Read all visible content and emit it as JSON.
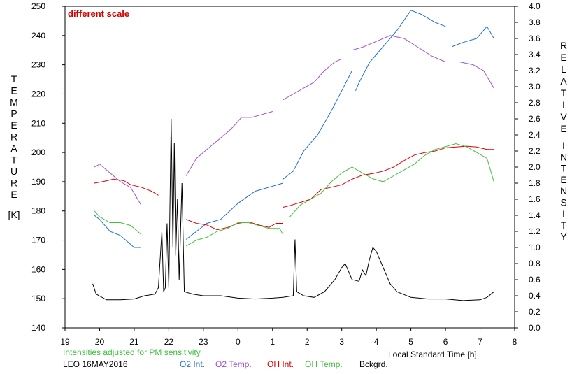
{
  "chart_data": {
    "type": "line",
    "annotation": "different scale",
    "y_left": {
      "label_letters": [
        "T",
        "E",
        "M",
        "P",
        "E",
        "R",
        "A",
        "T",
        "U",
        "R",
        "E"
      ],
      "unit": "[K]",
      "ticks": [
        140,
        150,
        160,
        170,
        180,
        190,
        200,
        210,
        220,
        230,
        240,
        250
      ],
      "range": [
        140,
        250
      ]
    },
    "y_right": {
      "label_word1": [
        "R",
        "E",
        "L",
        "A",
        "T",
        "I",
        "V",
        "E"
      ],
      "label_word2": [
        "I",
        "N",
        "T",
        "E",
        "N",
        "S",
        "I",
        "T",
        "Y"
      ],
      "ticks": [
        "0.0",
        "0.2",
        "0.4",
        "0.6",
        "0.8",
        "1.0",
        "1.2",
        "1.4",
        "1.6",
        "1.8",
        "2.0",
        "2.2",
        "2.4",
        "2.6",
        "2.8",
        "3.0",
        "3.2",
        "3.4",
        "3.6",
        "3.8",
        "4.0"
      ],
      "range": [
        0,
        4.0
      ]
    },
    "x": {
      "label": "Local Standard Time [h]",
      "ticks": [
        "19",
        "20",
        "21",
        "22",
        "23",
        "0",
        "1",
        "2",
        "3",
        "4",
        "5",
        "6",
        "7",
        "8"
      ],
      "range": [
        19,
        32
      ]
    },
    "footer": {
      "note": "Intensities adjusted for PM sensitivity",
      "station": "LEO 16MAY2016"
    },
    "legend": [
      {
        "name": "O2 Int.",
        "color": "#1f6fd6"
      },
      {
        "name": "O2 Temp.",
        "color": "#a050d0"
      },
      {
        "name": "OH Int.",
        "color": "#e00000"
      },
      {
        "name": "OH Temp.",
        "color": "#40c040"
      },
      {
        "name": "Bckgrd.",
        "color": "#000000"
      }
    ],
    "series": [
      {
        "name": "O2 Int.",
        "axis": "right",
        "color": "#1f6fd6",
        "points": [
          [
            19.85,
            1.4
          ],
          [
            20.0,
            1.35
          ],
          [
            20.3,
            1.2
          ],
          [
            20.6,
            1.15
          ],
          [
            21.0,
            1.0
          ],
          [
            21.2,
            1.0
          ],
          null,
          [
            22.5,
            1.1
          ],
          [
            22.8,
            1.2
          ],
          [
            23.1,
            1.3
          ],
          [
            23.5,
            1.35
          ],
          [
            24.0,
            1.55
          ],
          [
            24.5,
            1.7
          ],
          [
            24.9,
            1.75
          ],
          [
            25.3,
            1.8
          ],
          null,
          [
            25.3,
            1.85
          ],
          [
            25.6,
            1.95
          ],
          [
            25.9,
            2.2
          ],
          [
            26.3,
            2.4
          ],
          [
            26.7,
            2.7
          ],
          [
            27.0,
            2.95
          ],
          [
            27.3,
            3.2
          ],
          null,
          [
            27.4,
            2.95
          ],
          [
            27.5,
            3.05
          ],
          [
            27.8,
            3.3
          ],
          [
            28.2,
            3.5
          ],
          [
            28.6,
            3.7
          ],
          [
            29.0,
            3.95
          ],
          [
            29.3,
            3.9
          ],
          [
            29.7,
            3.8
          ],
          [
            30.0,
            3.75
          ],
          null,
          [
            30.2,
            3.5
          ],
          [
            30.5,
            3.55
          ],
          [
            30.9,
            3.6
          ],
          [
            31.2,
            3.75
          ],
          [
            31.4,
            3.6
          ]
        ]
      },
      {
        "name": "O2 Temp.",
        "axis": "left",
        "color": "#a050d0",
        "points": [
          [
            19.85,
            195
          ],
          [
            20.0,
            196
          ],
          [
            20.3,
            193
          ],
          [
            20.6,
            190
          ],
          [
            20.9,
            188
          ],
          [
            21.2,
            182
          ],
          null,
          [
            22.5,
            192
          ],
          [
            22.8,
            198
          ],
          [
            23.1,
            201
          ],
          [
            23.5,
            205
          ],
          [
            23.8,
            208
          ],
          [
            24.1,
            212
          ],
          [
            24.4,
            212
          ],
          [
            24.7,
            213
          ],
          [
            25.0,
            214
          ],
          null,
          [
            25.3,
            218
          ],
          [
            25.6,
            220
          ],
          [
            25.9,
            222
          ],
          [
            26.2,
            224
          ],
          [
            26.5,
            228
          ],
          [
            26.8,
            231
          ],
          [
            27.0,
            232
          ],
          null,
          [
            27.3,
            235
          ],
          [
            27.6,
            236
          ],
          [
            28.0,
            238
          ],
          [
            28.4,
            240
          ],
          [
            28.8,
            239
          ],
          [
            29.2,
            236
          ],
          [
            29.6,
            233
          ],
          [
            30.0,
            231
          ],
          [
            30.4,
            231
          ],
          [
            30.8,
            230
          ],
          [
            31.1,
            228
          ],
          [
            31.4,
            222
          ]
        ]
      },
      {
        "name": "OH Int.",
        "axis": "right",
        "color": "#e00000",
        "points": [
          [
            19.85,
            1.8
          ],
          [
            20.1,
            1.82
          ],
          [
            20.4,
            1.85
          ],
          [
            20.7,
            1.83
          ],
          [
            20.9,
            1.78
          ],
          [
            21.2,
            1.75
          ],
          [
            21.5,
            1.7
          ],
          [
            21.7,
            1.65
          ],
          null,
          [
            22.5,
            1.35
          ],
          [
            22.8,
            1.3
          ],
          [
            23.1,
            1.28
          ],
          [
            23.4,
            1.22
          ],
          [
            23.7,
            1.25
          ],
          [
            24.0,
            1.3
          ],
          [
            24.3,
            1.32
          ],
          [
            24.6,
            1.28
          ],
          [
            24.9,
            1.25
          ],
          [
            25.1,
            1.3
          ],
          [
            25.3,
            1.3
          ],
          null,
          [
            25.3,
            1.5
          ],
          [
            25.5,
            1.52
          ],
          [
            25.8,
            1.56
          ],
          [
            26.1,
            1.6
          ],
          [
            26.4,
            1.72
          ],
          [
            26.7,
            1.75
          ],
          [
            27.0,
            1.78
          ],
          [
            27.3,
            1.85
          ],
          [
            27.6,
            1.9
          ],
          [
            27.9,
            1.92
          ],
          [
            28.2,
            1.95
          ],
          [
            28.5,
            2.0
          ],
          [
            28.8,
            2.08
          ],
          [
            29.1,
            2.15
          ],
          [
            29.4,
            2.18
          ],
          [
            29.7,
            2.2
          ],
          [
            30.0,
            2.24
          ],
          [
            30.3,
            2.25
          ],
          [
            30.6,
            2.26
          ],
          [
            30.9,
            2.25
          ],
          [
            31.2,
            2.22
          ],
          [
            31.4,
            2.22
          ]
        ]
      },
      {
        "name": "OH Temp.",
        "axis": "left",
        "color": "#40c040",
        "points": [
          [
            19.85,
            180
          ],
          [
            20.0,
            178
          ],
          [
            20.3,
            176
          ],
          [
            20.6,
            176
          ],
          [
            20.9,
            175
          ],
          [
            21.2,
            172
          ],
          null,
          [
            22.5,
            168
          ],
          [
            22.8,
            170
          ],
          [
            23.1,
            171
          ],
          [
            23.4,
            173
          ],
          [
            23.7,
            174
          ],
          [
            24.0,
            176
          ],
          [
            24.3,
            176
          ],
          [
            24.6,
            175
          ],
          [
            24.9,
            174
          ],
          [
            25.2,
            174
          ],
          [
            25.3,
            172
          ],
          null,
          [
            25.5,
            178
          ],
          [
            25.8,
            182
          ],
          [
            26.1,
            184
          ],
          [
            26.4,
            186
          ],
          [
            26.7,
            190
          ],
          [
            27.0,
            193
          ],
          [
            27.3,
            195
          ],
          [
            27.6,
            193
          ],
          [
            27.9,
            191
          ],
          [
            28.2,
            190
          ],
          [
            28.5,
            192
          ],
          [
            28.8,
            194
          ],
          [
            29.1,
            196
          ],
          [
            29.4,
            199
          ],
          [
            29.7,
            201
          ],
          [
            30.0,
            202
          ],
          [
            30.3,
            203
          ],
          [
            30.6,
            202
          ],
          [
            30.9,
            200
          ],
          [
            31.2,
            198
          ],
          [
            31.4,
            190
          ]
        ]
      },
      {
        "name": "Bckgrd.",
        "axis": "right",
        "color": "#000000",
        "points": [
          [
            19.8,
            0.55
          ],
          [
            19.9,
            0.42
          ],
          [
            20.2,
            0.35
          ],
          [
            20.6,
            0.35
          ],
          [
            21.0,
            0.36
          ],
          [
            21.3,
            0.4
          ],
          [
            21.6,
            0.42
          ],
          [
            21.7,
            0.5
          ],
          [
            21.8,
            1.2
          ],
          [
            21.85,
            0.45
          ],
          [
            21.9,
            0.5
          ],
          [
            21.95,
            1.3
          ],
          [
            22.0,
            0.5
          ],
          [
            22.07,
            2.6
          ],
          [
            22.12,
            1.0
          ],
          [
            22.16,
            2.3
          ],
          [
            22.2,
            0.9
          ],
          [
            22.25,
            1.6
          ],
          [
            22.3,
            0.6
          ],
          [
            22.38,
            1.8
          ],
          [
            22.45,
            0.45
          ],
          [
            22.7,
            0.42
          ],
          [
            23.0,
            0.4
          ],
          [
            23.5,
            0.4
          ],
          [
            24.0,
            0.37
          ],
          [
            24.5,
            0.36
          ],
          [
            25.0,
            0.37
          ],
          [
            25.3,
            0.38
          ],
          [
            25.6,
            0.4
          ],
          [
            25.65,
            1.1
          ],
          [
            25.7,
            0.45
          ],
          [
            25.9,
            0.4
          ],
          [
            26.2,
            0.38
          ],
          [
            26.5,
            0.45
          ],
          [
            26.8,
            0.6
          ],
          [
            27.0,
            0.75
          ],
          [
            27.1,
            0.8
          ],
          [
            27.3,
            0.6
          ],
          [
            27.5,
            0.58
          ],
          [
            27.6,
            0.72
          ],
          [
            27.7,
            0.65
          ],
          [
            27.8,
            0.85
          ],
          [
            27.9,
            1.0
          ],
          [
            28.0,
            0.95
          ],
          [
            28.2,
            0.75
          ],
          [
            28.4,
            0.55
          ],
          [
            28.6,
            0.45
          ],
          [
            29.0,
            0.38
          ],
          [
            29.5,
            0.36
          ],
          [
            30.0,
            0.36
          ],
          [
            30.5,
            0.34
          ],
          [
            31.0,
            0.35
          ],
          [
            31.2,
            0.38
          ],
          [
            31.4,
            0.45
          ]
        ]
      }
    ]
  }
}
